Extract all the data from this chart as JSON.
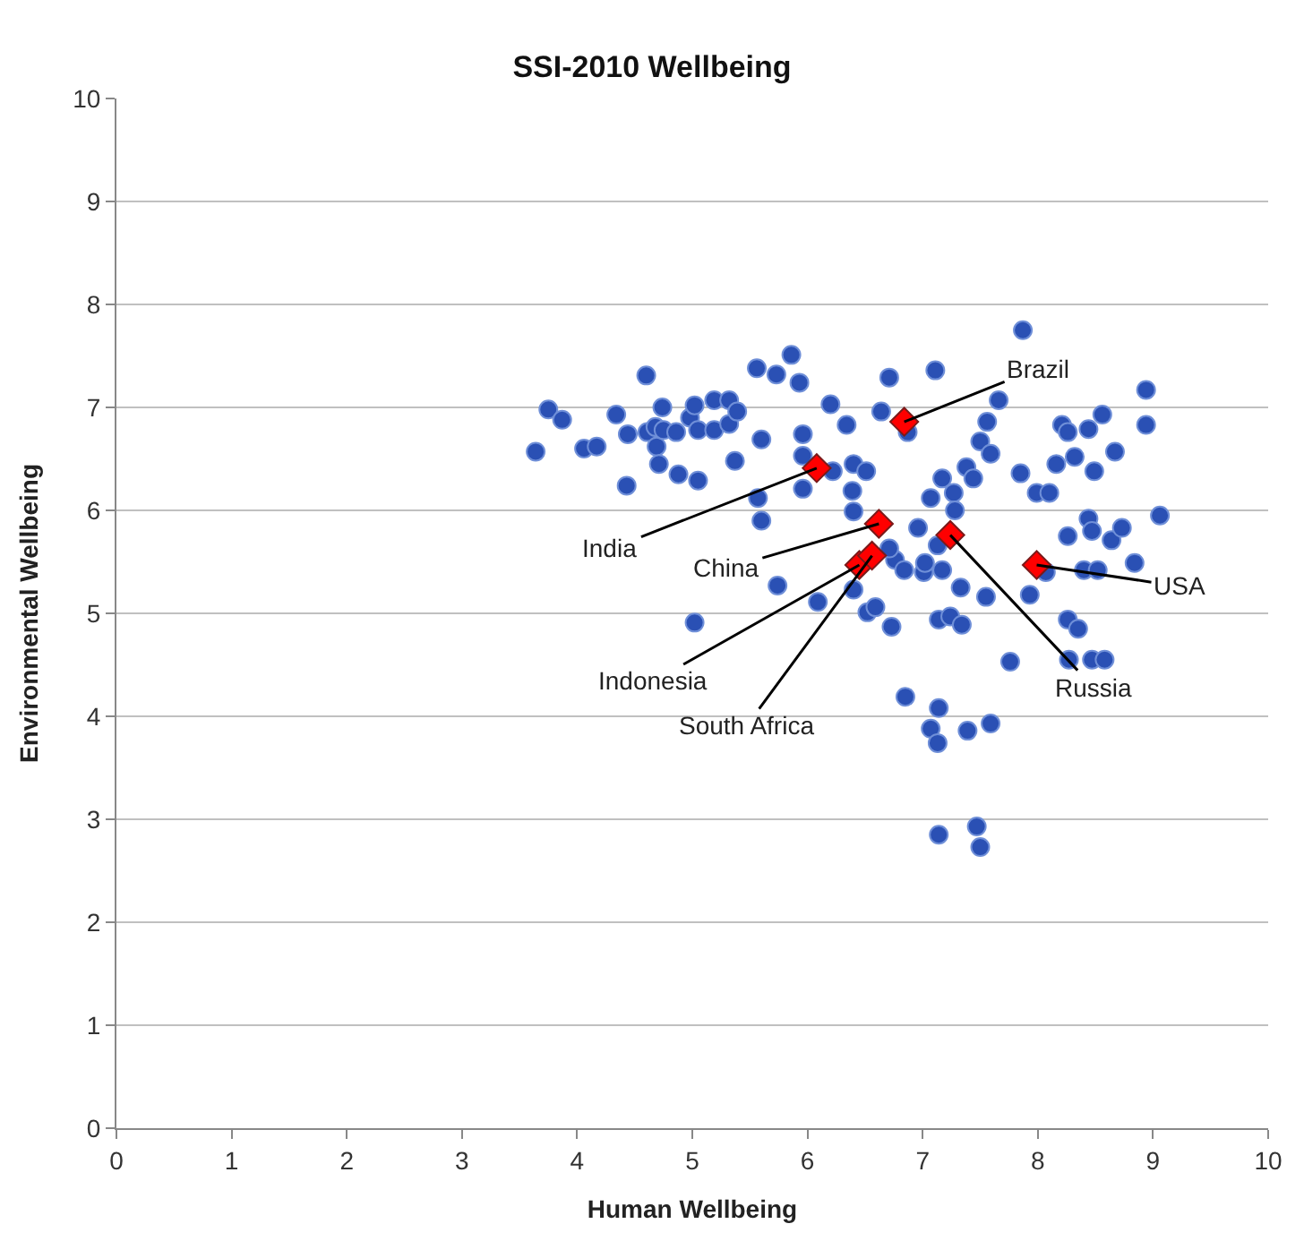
{
  "chart_data": {
    "type": "scatter",
    "title": "SSI-2010 Wellbeing",
    "xlabel": "Human Wellbeing",
    "ylabel": "Environmental Wellbeing",
    "xlim": [
      0,
      10
    ],
    "ylim": [
      0,
      10
    ],
    "xticks": [
      0,
      1,
      2,
      3,
      4,
      5,
      6,
      7,
      8,
      9,
      10
    ],
    "yticks": [
      0,
      1,
      2,
      3,
      4,
      5,
      6,
      7,
      8,
      9,
      10
    ],
    "grid": "y",
    "series": [
      {
        "color": "#2a50b4",
        "marker": "circle",
        "x": [
          3.64,
          3.75,
          3.87,
          4.06,
          4.17,
          4.34,
          4.44,
          4.43,
          4.6,
          4.61,
          4.68,
          4.69,
          4.71,
          4.75,
          4.74,
          4.86,
          4.88,
          4.98,
          5.02,
          5.05,
          5.02,
          5.05,
          5.19,
          5.19,
          5.32,
          5.32,
          5.37,
          5.39,
          5.56,
          5.6,
          5.57,
          5.6,
          5.73,
          5.74,
          5.86,
          5.93,
          5.96,
          5.96,
          5.96,
          6.09,
          6.2,
          6.22,
          6.34,
          6.39,
          6.4,
          6.4,
          6.51,
          6.64,
          6.71,
          6.76,
          6.84,
          6.87,
          6.96,
          7.01,
          7.11,
          7.07,
          7.13,
          7.17,
          7.27,
          7.28,
          7.38,
          7.44,
          7.5,
          7.56,
          7.59,
          7.66,
          7.87,
          7.85,
          7.99,
          8.1,
          8.16,
          8.21,
          8.26,
          8.32,
          8.44,
          8.49,
          8.56,
          8.67,
          8.94,
          8.94,
          8.44,
          8.47,
          8.26,
          8.4,
          8.64,
          8.73,
          9.06,
          8.84,
          8.52,
          8.07,
          7.93,
          7.55,
          7.33,
          7.17,
          7.02,
          6.71,
          6.4,
          6.52,
          6.59,
          6.73,
          7.14,
          7.24,
          7.34,
          7.76,
          8.26,
          8.35,
          8.27,
          8.47,
          8.58,
          6.85,
          7.14,
          7.07,
          7.13,
          7.39,
          7.59,
          7.14,
          7.47,
          7.5
        ],
        "values": [
          6.57,
          6.98,
          6.88,
          6.6,
          6.62,
          6.93,
          6.74,
          6.24,
          7.31,
          6.76,
          6.81,
          6.62,
          6.45,
          6.78,
          7.0,
          6.76,
          6.35,
          6.9,
          7.02,
          6.29,
          4.91,
          6.78,
          7.07,
          6.78,
          7.07,
          6.84,
          6.48,
          6.96,
          7.38,
          6.69,
          6.12,
          5.9,
          7.32,
          5.27,
          7.51,
          7.24,
          6.74,
          6.53,
          6.21,
          5.11,
          7.03,
          6.38,
          6.83,
          6.19,
          6.45,
          5.99,
          6.38,
          6.96,
          7.29,
          5.52,
          5.42,
          6.76,
          5.83,
          5.4,
          7.36,
          6.12,
          5.66,
          6.31,
          6.17,
          6.0,
          6.42,
          6.31,
          6.67,
          6.86,
          6.55,
          7.07,
          7.75,
          6.36,
          6.17,
          6.17,
          6.45,
          6.83,
          6.76,
          6.52,
          6.79,
          6.38,
          6.93,
          6.57,
          7.17,
          6.83,
          5.92,
          5.8,
          5.75,
          5.42,
          5.71,
          5.83,
          5.95,
          5.49,
          5.42,
          5.4,
          5.18,
          5.16,
          5.25,
          5.42,
          5.49,
          5.63,
          5.23,
          5.01,
          5.06,
          4.87,
          4.94,
          4.97,
          4.89,
          4.53,
          4.94,
          4.85,
          4.55,
          4.55,
          4.55,
          4.19,
          4.08,
          3.88,
          3.74,
          3.86,
          3.93,
          2.85,
          2.93,
          2.73
        ]
      },
      {
        "color": "#ff0000",
        "marker": "diamond",
        "x": [
          6.84,
          6.08,
          6.62,
          6.45,
          6.56,
          7.24,
          7.99
        ],
        "values": [
          6.86,
          6.41,
          5.87,
          5.47,
          5.56,
          5.76,
          5.47
        ]
      }
    ],
    "annotations": [
      {
        "text": "Brazil",
        "x": 6.84,
        "y": 6.86
      },
      {
        "text": "India",
        "x": 6.08,
        "y": 6.41
      },
      {
        "text": "China",
        "x": 6.62,
        "y": 5.87
      },
      {
        "text": "Indonesia",
        "x": 6.45,
        "y": 5.47
      },
      {
        "text": "South Africa",
        "x": 6.56,
        "y": 5.56
      },
      {
        "text": "Russia",
        "x": 7.24,
        "y": 5.76
      },
      {
        "text": "USA",
        "x": 7.99,
        "y": 5.47
      }
    ]
  }
}
